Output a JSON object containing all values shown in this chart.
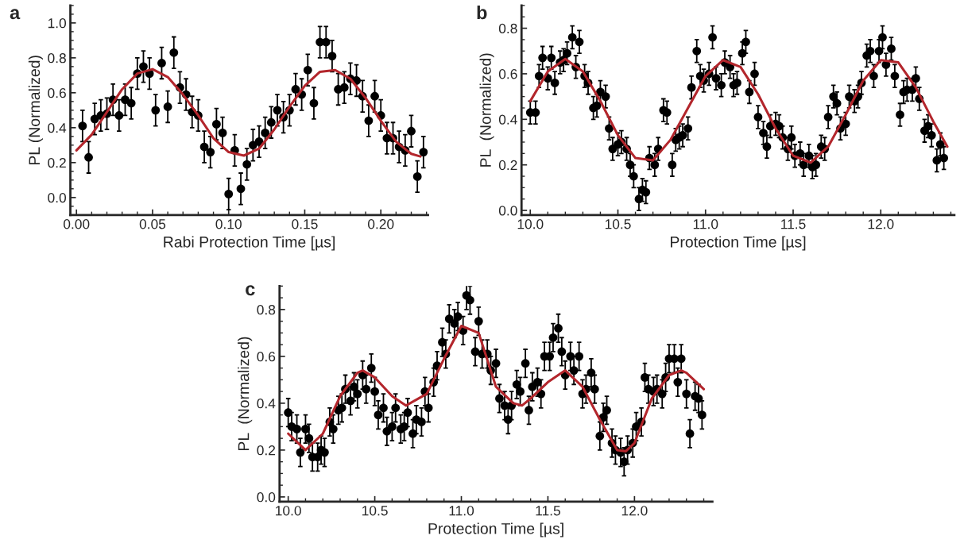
{
  "chart_data": [
    {
      "type": "scatter",
      "title": "a",
      "xlabel": "Rabi Protection Time [µs]",
      "ylabel": "PL (Normalized)",
      "xlim": [
        -0.004,
        0.231
      ],
      "ylim": [
        -0.1,
        1.1
      ],
      "xticks": [
        {
          "value": 0,
          "label": "0.00"
        },
        {
          "value": 0.05,
          "label": "0.05"
        },
        {
          "value": 0.1,
          "label": "0.10"
        },
        {
          "value": 0.15,
          "label": "0.15"
        },
        {
          "value": 0.2,
          "label": "0.20"
        }
      ],
      "yticks": [
        {
          "value": 0,
          "label": "0.0"
        },
        {
          "value": 0.2,
          "label": "0.2"
        },
        {
          "value": 0.4,
          "label": "0.4"
        },
        {
          "value": 0.6,
          "label": "0.6"
        },
        {
          "value": 0.8,
          "label": "0.8"
        },
        {
          "value": 1,
          "label": "1.0"
        }
      ],
      "series": [
        {
          "marker": "circle",
          "color": "#000000",
          "x": [
            0.004,
            0.008,
            0.012,
            0.016,
            0.02,
            0.024,
            0.028,
            0.032,
            0.036,
            0.04,
            0.044,
            0.048,
            0.052,
            0.056,
            0.06,
            0.064,
            0.068,
            0.072,
            0.076,
            0.08,
            0.084,
            0.088,
            0.092,
            0.096,
            0.1,
            0.104,
            0.108,
            0.112,
            0.116,
            0.12,
            0.124,
            0.128,
            0.132,
            0.136,
            0.14,
            0.144,
            0.148,
            0.152,
            0.156,
            0.16,
            0.164,
            0.168,
            0.172,
            0.176,
            0.18,
            0.184,
            0.188,
            0.192,
            0.196,
            0.2,
            0.204,
            0.208,
            0.212,
            0.216,
            0.22,
            0.224,
            0.228
          ],
          "values": [
            0.41,
            0.23,
            0.45,
            0.47,
            0.48,
            0.56,
            0.47,
            0.56,
            0.54,
            0.71,
            0.75,
            0.71,
            0.5,
            0.77,
            0.52,
            0.83,
            0.63,
            0.59,
            0.49,
            0.47,
            0.29,
            0.26,
            0.42,
            0.37,
            0.02,
            0.27,
            0.05,
            0.19,
            0.3,
            0.32,
            0.37,
            0.43,
            0.5,
            0.46,
            0.5,
            0.62,
            0.59,
            0.73,
            0.54,
            0.89,
            0.89,
            0.81,
            0.62,
            0.63,
            0.68,
            0.67,
            0.58,
            0.44,
            0.58,
            0.47,
            0.34,
            0.34,
            0.29,
            0.27,
            0.38,
            0.12,
            0.26
          ],
          "errors": [
            0.09,
            0.09,
            0.09,
            0.09,
            0.09,
            0.09,
            0.09,
            0.09,
            0.09,
            0.09,
            0.09,
            0.09,
            0.09,
            0.09,
            0.09,
            0.09,
            0.09,
            0.09,
            0.09,
            0.09,
            0.09,
            0.09,
            0.09,
            0.09,
            0.09,
            0.09,
            0.09,
            0.09,
            0.09,
            0.09,
            0.09,
            0.09,
            0.09,
            0.09,
            0.09,
            0.09,
            0.09,
            0.09,
            0.09,
            0.09,
            0.09,
            0.09,
            0.09,
            0.09,
            0.09,
            0.09,
            0.09,
            0.09,
            0.09,
            0.09,
            0.09,
            0.09,
            0.09,
            0.09,
            0.09,
            0.09,
            0.09
          ]
        },
        {
          "type": "line",
          "color": "#b3262c",
          "x": [
            0,
            0.01,
            0.02,
            0.03,
            0.04,
            0.05,
            0.06,
            0.07,
            0.08,
            0.09,
            0.1,
            0.11,
            0.12,
            0.13,
            0.14,
            0.15,
            0.16,
            0.17,
            0.18,
            0.19,
            0.2,
            0.21,
            0.22,
            0.226
          ],
          "values": [
            0.27,
            0.36,
            0.49,
            0.62,
            0.71,
            0.735,
            0.69,
            0.59,
            0.47,
            0.34,
            0.26,
            0.24,
            0.28,
            0.39,
            0.52,
            0.64,
            0.72,
            0.73,
            0.68,
            0.57,
            0.44,
            0.32,
            0.25,
            0.235
          ]
        }
      ]
    },
    {
      "type": "scatter",
      "title": "b",
      "xlabel": "Protection Time [µs]",
      "ylabel": "PL  (Normalized)",
      "xlim": [
        9.95,
        12.42
      ],
      "ylim": [
        -0.02,
        0.9
      ],
      "xticks": [
        {
          "value": 10,
          "label": "10.0"
        },
        {
          "value": 10.5,
          "label": "10.5"
        },
        {
          "value": 11,
          "label": "11.0"
        },
        {
          "value": 11.5,
          "label": "11.5"
        },
        {
          "value": 12,
          "label": "12.0"
        }
      ],
      "yticks": [
        {
          "value": 0,
          "label": "0.0"
        },
        {
          "value": 0.2,
          "label": "0.2"
        },
        {
          "value": 0.4,
          "label": "0.4"
        },
        {
          "value": 0.6,
          "label": "0.6"
        },
        {
          "value": 0.8,
          "label": "0.8"
        }
      ],
      "series": [
        {
          "marker": "circle",
          "color": "#000000",
          "x": [
            10.0,
            10.03,
            10.05,
            10.07,
            10.1,
            10.12,
            10.14,
            10.17,
            10.19,
            10.21,
            10.24,
            10.26,
            10.28,
            10.31,
            10.33,
            10.36,
            10.38,
            10.4,
            10.43,
            10.45,
            10.47,
            10.5,
            10.52,
            10.55,
            10.57,
            10.59,
            10.62,
            10.64,
            10.66,
            10.68,
            10.71,
            10.73,
            10.76,
            10.78,
            10.81,
            10.83,
            10.85,
            10.87,
            10.9,
            10.92,
            10.95,
            10.97,
            10.99,
            11.02,
            11.04,
            11.06,
            11.09,
            11.11,
            11.14,
            11.16,
            11.18,
            11.21,
            11.23,
            11.25,
            11.28,
            11.3,
            11.33,
            11.35,
            11.37,
            11.4,
            11.42,
            11.44,
            11.47,
            11.49,
            11.51,
            11.54,
            11.56,
            11.59,
            11.61,
            11.63,
            11.66,
            11.68,
            11.7,
            11.73,
            11.75,
            11.77,
            11.8,
            11.82,
            11.85,
            11.87,
            11.89,
            11.92,
            11.94,
            11.96,
            11.99,
            12.01,
            12.03,
            12.06,
            12.08,
            12.11,
            12.13,
            12.15,
            12.18,
            12.2,
            12.22,
            12.25,
            12.27,
            12.29,
            12.32,
            12.34,
            12.36
          ],
          "values": [
            0.43,
            0.43,
            0.59,
            0.67,
            0.58,
            0.67,
            0.56,
            0.65,
            0.66,
            0.69,
            0.76,
            0.63,
            0.74,
            0.59,
            0.56,
            0.45,
            0.46,
            0.52,
            0.5,
            0.36,
            0.27,
            0.29,
            0.3,
            0.27,
            0.2,
            0.15,
            0.05,
            0.09,
            0.08,
            0.23,
            0.2,
            0.27,
            0.44,
            0.43,
            0.2,
            0.31,
            0.32,
            0.33,
            0.36,
            0.54,
            0.7,
            0.59,
            0.57,
            0.6,
            0.76,
            0.58,
            0.55,
            0.65,
            0.63,
            0.55,
            0.56,
            0.69,
            0.74,
            0.52,
            0.6,
            0.41,
            0.34,
            0.28,
            0.37,
            0.38,
            0.37,
            0.32,
            0.27,
            0.32,
            0.24,
            0.25,
            0.2,
            0.24,
            0.19,
            0.2,
            0.28,
            0.27,
            0.41,
            0.5,
            0.47,
            0.36,
            0.38,
            0.5,
            0.48,
            0.5,
            0.56,
            0.68,
            0.7,
            0.59,
            0.7,
            0.76,
            0.64,
            0.71,
            0.59,
            0.42,
            0.52,
            0.53,
            0.53,
            0.58,
            0.49,
            0.35,
            0.37,
            0.33,
            0.22,
            0.29,
            0.23
          ],
          "errors": [
            0.05,
            0.05,
            0.05,
            0.05,
            0.05,
            0.05,
            0.05,
            0.05,
            0.05,
            0.05,
            0.05,
            0.05,
            0.05,
            0.05,
            0.05,
            0.05,
            0.05,
            0.05,
            0.05,
            0.05,
            0.05,
            0.05,
            0.05,
            0.05,
            0.05,
            0.05,
            0.05,
            0.05,
            0.05,
            0.05,
            0.05,
            0.05,
            0.05,
            0.05,
            0.05,
            0.05,
            0.05,
            0.05,
            0.05,
            0.05,
            0.05,
            0.05,
            0.05,
            0.05,
            0.05,
            0.05,
            0.05,
            0.05,
            0.05,
            0.05,
            0.05,
            0.05,
            0.05,
            0.05,
            0.05,
            0.05,
            0.05,
            0.05,
            0.05,
            0.05,
            0.05,
            0.05,
            0.05,
            0.05,
            0.05,
            0.05,
            0.05,
            0.05,
            0.05,
            0.05,
            0.05,
            0.05,
            0.05,
            0.05,
            0.05,
            0.05,
            0.05,
            0.05,
            0.05,
            0.05,
            0.05,
            0.05,
            0.05,
            0.05,
            0.05,
            0.05,
            0.05,
            0.05,
            0.05,
            0.05,
            0.05,
            0.05,
            0.05,
            0.05,
            0.05,
            0.05,
            0.05,
            0.05,
            0.05,
            0.05,
            0.05
          ]
        },
        {
          "type": "line",
          "color": "#b3262c",
          "x": [
            10.0,
            10.1,
            10.2,
            10.3,
            10.4,
            10.5,
            10.6,
            10.7,
            10.8,
            10.9,
            11.0,
            11.1,
            11.2,
            11.3,
            11.4,
            11.5,
            11.6,
            11.7,
            11.8,
            11.9,
            12.0,
            12.1,
            12.2,
            12.3,
            12.38
          ],
          "values": [
            0.48,
            0.61,
            0.665,
            0.61,
            0.48,
            0.33,
            0.23,
            0.22,
            0.31,
            0.45,
            0.59,
            0.66,
            0.63,
            0.51,
            0.36,
            0.24,
            0.21,
            0.28,
            0.42,
            0.57,
            0.66,
            0.65,
            0.54,
            0.39,
            0.28
          ]
        }
      ]
    },
    {
      "type": "scatter",
      "title": "c",
      "xlabel": "Protection Time [µs]",
      "ylabel": "PL  (Normalized)",
      "xlim": [
        9.95,
        12.45
      ],
      "ylim": [
        -0.02,
        0.9
      ],
      "xticks": [
        {
          "value": 10,
          "label": "10.0"
        },
        {
          "value": 10.5,
          "label": "10.5"
        },
        {
          "value": 11,
          "label": "11.0"
        },
        {
          "value": 11.5,
          "label": "11.5"
        },
        {
          "value": 12,
          "label": "12.0"
        }
      ],
      "yticks": [
        {
          "value": 0,
          "label": "0.0"
        },
        {
          "value": 0.2,
          "label": "0.2"
        },
        {
          "value": 0.4,
          "label": "0.4"
        },
        {
          "value": 0.6,
          "label": "0.6"
        },
        {
          "value": 0.8,
          "label": "0.8"
        }
      ],
      "series": [
        {
          "marker": "circle",
          "color": "#000000",
          "x": [
            10.0,
            10.02,
            10.05,
            10.07,
            10.1,
            10.12,
            10.14,
            10.17,
            10.19,
            10.21,
            10.24,
            10.26,
            10.29,
            10.31,
            10.33,
            10.36,
            10.38,
            10.4,
            10.43,
            10.45,
            10.48,
            10.5,
            10.52,
            10.55,
            10.57,
            10.6,
            10.62,
            10.65,
            10.67,
            10.69,
            10.72,
            10.74,
            10.77,
            10.79,
            10.81,
            10.84,
            10.86,
            10.89,
            10.91,
            10.93,
            10.96,
            10.98,
            11.01,
            11.03,
            11.05,
            11.08,
            11.1,
            11.12,
            11.15,
            11.17,
            11.2,
            11.22,
            11.25,
            11.27,
            11.29,
            11.32,
            11.34,
            11.37,
            11.39,
            11.41,
            11.44,
            11.46,
            11.48,
            11.51,
            11.53,
            11.56,
            11.58,
            11.6,
            11.63,
            11.65,
            11.68,
            11.7,
            11.72,
            11.75,
            11.77,
            11.8,
            11.82,
            11.84,
            11.87,
            11.89,
            11.92,
            11.94,
            11.96,
            11.99,
            12.01,
            12.04,
            12.06,
            12.08,
            12.11,
            12.13,
            12.16,
            12.18,
            12.2,
            12.23,
            12.25,
            12.27,
            12.3,
            12.32,
            12.35,
            12.37,
            12.39
          ],
          "values": [
            0.36,
            0.3,
            0.29,
            0.19,
            0.29,
            0.25,
            0.17,
            0.17,
            0.2,
            0.19,
            0.32,
            0.29,
            0.37,
            0.38,
            0.46,
            0.41,
            0.47,
            0.44,
            0.52,
            0.46,
            0.55,
            0.45,
            0.35,
            0.38,
            0.28,
            0.3,
            0.38,
            0.29,
            0.3,
            0.36,
            0.27,
            0.33,
            0.32,
            0.45,
            0.38,
            0.49,
            0.56,
            0.66,
            0.61,
            0.76,
            0.74,
            0.77,
            0.71,
            0.86,
            0.84,
            0.62,
            0.75,
            0.61,
            0.61,
            0.54,
            0.57,
            0.42,
            0.39,
            0.33,
            0.39,
            0.48,
            0.45,
            0.57,
            0.37,
            0.47,
            0.49,
            0.44,
            0.6,
            0.6,
            0.68,
            0.72,
            0.62,
            0.52,
            0.6,
            0.54,
            0.6,
            0.44,
            0.46,
            0.53,
            0.46,
            0.26,
            0.34,
            0.37,
            0.23,
            0.2,
            0.19,
            0.15,
            0.2,
            0.23,
            0.3,
            0.32,
            0.51,
            0.46,
            0.45,
            0.46,
            0.44,
            0.51,
            0.59,
            0.59,
            0.49,
            0.59,
            0.44,
            0.27,
            0.43,
            0.42,
            0.35
          ],
          "errors": [
            0.06,
            0.06,
            0.06,
            0.06,
            0.06,
            0.06,
            0.06,
            0.06,
            0.06,
            0.06,
            0.06,
            0.06,
            0.06,
            0.06,
            0.06,
            0.06,
            0.06,
            0.06,
            0.06,
            0.06,
            0.06,
            0.06,
            0.06,
            0.06,
            0.06,
            0.06,
            0.06,
            0.06,
            0.06,
            0.06,
            0.06,
            0.06,
            0.06,
            0.06,
            0.06,
            0.06,
            0.06,
            0.06,
            0.06,
            0.06,
            0.06,
            0.06,
            0.06,
            0.06,
            0.06,
            0.06,
            0.06,
            0.06,
            0.06,
            0.06,
            0.06,
            0.06,
            0.06,
            0.06,
            0.06,
            0.06,
            0.06,
            0.06,
            0.06,
            0.06,
            0.06,
            0.06,
            0.06,
            0.06,
            0.06,
            0.06,
            0.06,
            0.06,
            0.06,
            0.06,
            0.06,
            0.06,
            0.06,
            0.06,
            0.06,
            0.06,
            0.06,
            0.06,
            0.06,
            0.06,
            0.06,
            0.06,
            0.06,
            0.06,
            0.06,
            0.06,
            0.06,
            0.06,
            0.06,
            0.06,
            0.06,
            0.06,
            0.06,
            0.06,
            0.06,
            0.06,
            0.06,
            0.06,
            0.06,
            0.06,
            0.06
          ]
        },
        {
          "type": "line",
          "color": "#b3262c",
          "x": [
            10.0,
            10.1,
            10.2,
            10.3,
            10.4,
            10.43,
            10.5,
            10.6,
            10.68,
            10.8,
            10.9,
            11.0,
            11.1,
            11.2,
            11.3,
            11.35,
            11.4,
            11.5,
            11.6,
            11.7,
            11.8,
            11.9,
            11.95,
            12.0,
            12.1,
            12.2,
            12.27,
            12.3,
            12.4
          ],
          "values": [
            0.27,
            0.2,
            0.27,
            0.43,
            0.53,
            0.54,
            0.51,
            0.43,
            0.39,
            0.44,
            0.59,
            0.73,
            0.7,
            0.47,
            0.4,
            0.39,
            0.42,
            0.49,
            0.54,
            0.47,
            0.33,
            0.2,
            0.195,
            0.23,
            0.42,
            0.52,
            0.54,
            0.53,
            0.46
          ]
        }
      ]
    }
  ]
}
